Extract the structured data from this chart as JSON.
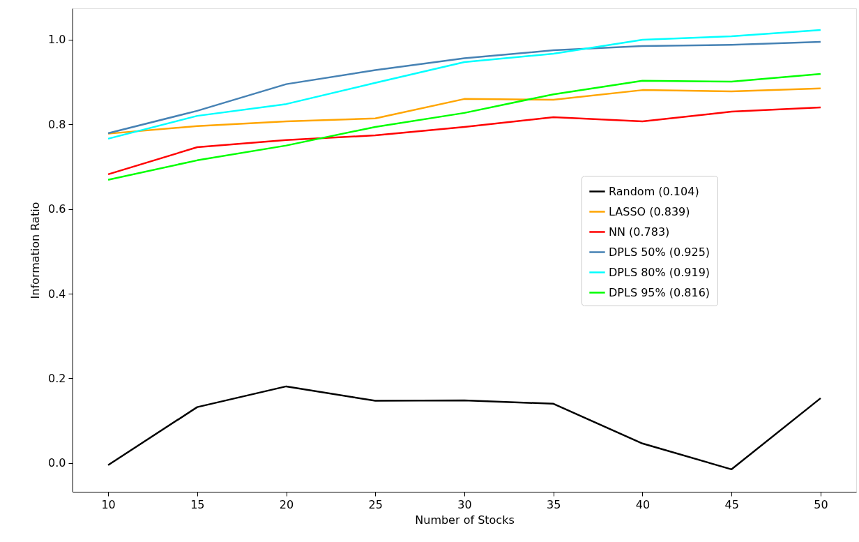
{
  "chart_data": {
    "type": "line",
    "xlabel": "Number of Stocks",
    "ylabel": "Information Ratio",
    "x": [
      10,
      15,
      20,
      25,
      30,
      35,
      40,
      45,
      50
    ],
    "series": [
      {
        "name": "Random (0.104)",
        "color": "#000000",
        "values": [
          -0.005,
          0.132,
          0.181,
          0.147,
          0.148,
          0.14,
          0.046,
          -0.015,
          0.153
        ]
      },
      {
        "name": "LASSO (0.839)",
        "color": "#ffa500",
        "values": [
          0.778,
          0.796,
          0.807,
          0.814,
          0.86,
          0.858,
          0.881,
          0.878,
          0.885
        ]
      },
      {
        "name": "NN (0.783)",
        "color": "#ff0000",
        "values": [
          0.682,
          0.746,
          0.763,
          0.774,
          0.794,
          0.817,
          0.807,
          0.83,
          0.84
        ]
      },
      {
        "name": "DPLS 50% (0.925)",
        "color": "#4682b4",
        "values": [
          0.779,
          0.832,
          0.895,
          0.928,
          0.956,
          0.975,
          0.985,
          0.988,
          0.995
        ]
      },
      {
        "name": "DPLS 80% (0.919)",
        "color": "#00ffff",
        "values": [
          0.766,
          0.82,
          0.848,
          0.898,
          0.947,
          0.967,
          1.0,
          1.008,
          1.023
        ]
      },
      {
        "name": "DPLS 95% (0.816)",
        "color": "#00ff00",
        "values": [
          0.669,
          0.715,
          0.75,
          0.794,
          0.827,
          0.871,
          0.903,
          0.901,
          0.919
        ]
      }
    ],
    "xlim": [
      8,
      52
    ],
    "ylim": [
      -0.068,
      1.074
    ],
    "xticks": [
      10,
      15,
      20,
      25,
      30,
      35,
      40,
      45,
      50
    ],
    "yticks": [
      {
        "value": 0,
        "label": "0.0"
      },
      {
        "value": 0.2,
        "label": "0.2"
      },
      {
        "value": 0.4,
        "label": "0.4"
      },
      {
        "value": 0.6,
        "label": "0.6"
      },
      {
        "value": 0.8,
        "label": "0.8"
      },
      {
        "value": 1.0,
        "label": "1.0"
      }
    ],
    "grid": false,
    "legend": "center right",
    "marker": "none",
    "line_style": "solid"
  }
}
